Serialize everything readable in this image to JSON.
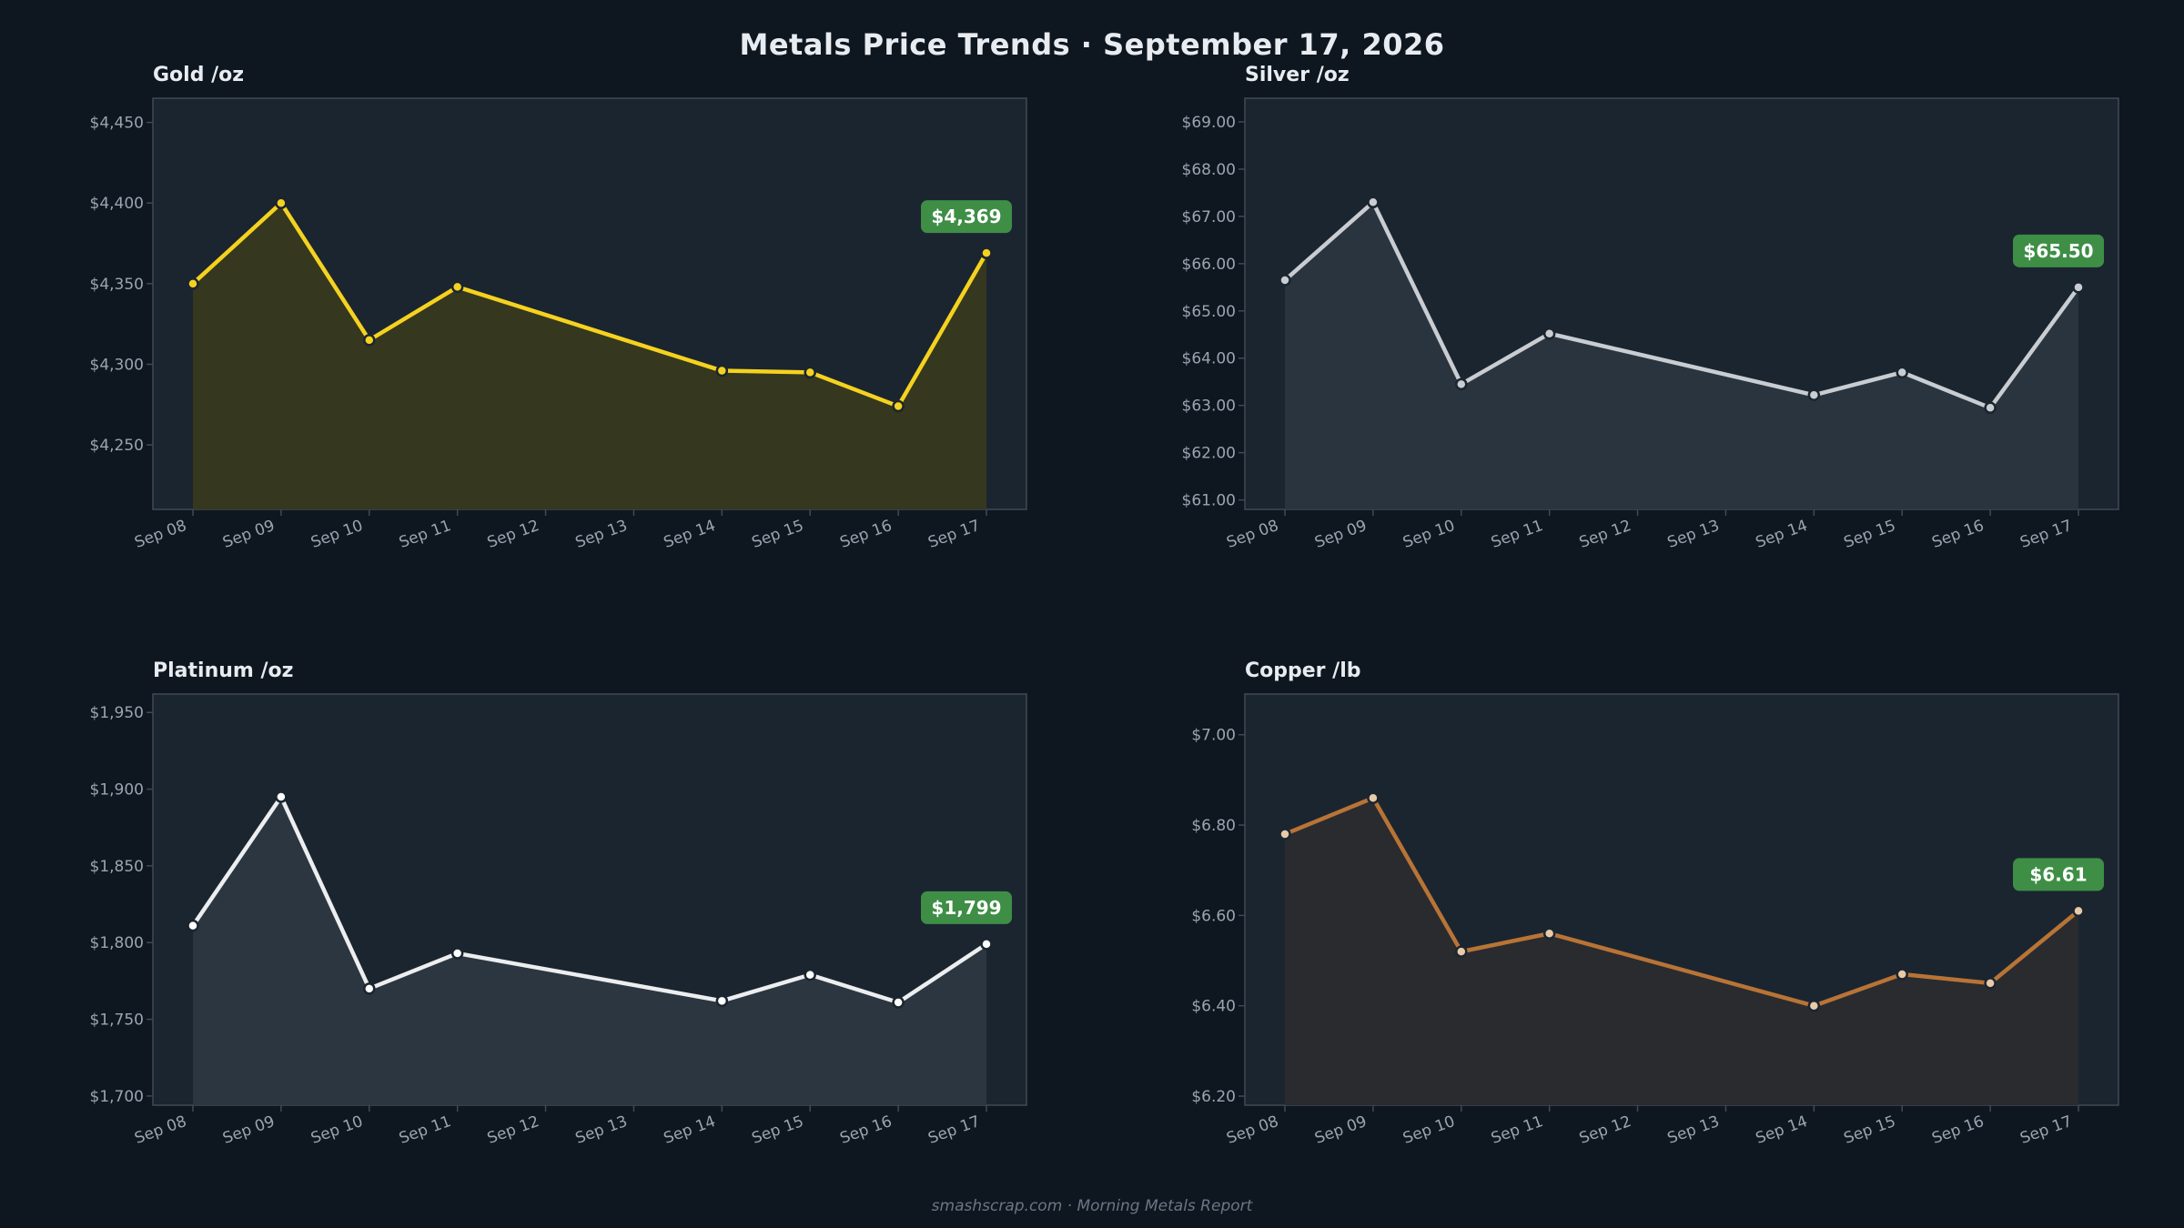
{
  "page": {
    "title": "Metals Price Trends  ·  September 17, 2026",
    "footer": "smashscrap.com  ·  Morning Metals Report"
  },
  "chart_data": [
    {
      "type": "line",
      "title": "Gold  /oz",
      "xlabel": "",
      "ylabel": "",
      "categories": [
        "Sep 08",
        "Sep 09",
        "Sep 10",
        "Sep 11",
        "Sep 12",
        "Sep 13",
        "Sep 14",
        "Sep 15",
        "Sep 16",
        "Sep 17"
      ],
      "series": [
        {
          "values": [
            4350,
            4400,
            4315,
            4348,
            null,
            null,
            4296,
            4295,
            4274,
            4369
          ]
        }
      ],
      "ylim": [
        4210,
        4465
      ],
      "yticks": [
        4250,
        4300,
        4350,
        4400,
        4450
      ],
      "yticklabels": [
        "$4,250",
        "$4,300",
        "$4,350",
        "$4,400",
        "$4,450"
      ],
      "last_label": "$4,369",
      "color": "#f5d21f",
      "fill": "#37381f",
      "marker_fill": "#f5d21f",
      "grid": false
    },
    {
      "type": "line",
      "title": "Silver  /oz",
      "xlabel": "",
      "ylabel": "",
      "categories": [
        "Sep 08",
        "Sep 09",
        "Sep 10",
        "Sep 11",
        "Sep 12",
        "Sep 13",
        "Sep 14",
        "Sep 15",
        "Sep 16",
        "Sep 17"
      ],
      "series": [
        {
          "values": [
            65.65,
            67.3,
            63.45,
            64.52,
            null,
            null,
            63.22,
            63.7,
            62.95,
            65.5
          ]
        }
      ],
      "ylim": [
        60.8,
        69.5
      ],
      "yticks": [
        61,
        62,
        63,
        64,
        65,
        66,
        67,
        68,
        69
      ],
      "yticklabels": [
        "$61.00",
        "$62.00",
        "$63.00",
        "$64.00",
        "$65.00",
        "$66.00",
        "$67.00",
        "$68.00",
        "$69.00"
      ],
      "last_label": "$65.50",
      "color": "#c9cdd2",
      "fill": "#2b3540",
      "marker_fill": "#c9cdd2",
      "grid": false
    },
    {
      "type": "line",
      "title": "Platinum  /oz",
      "xlabel": "",
      "ylabel": "",
      "categories": [
        "Sep 08",
        "Sep 09",
        "Sep 10",
        "Sep 11",
        "Sep 12",
        "Sep 13",
        "Sep 14",
        "Sep 15",
        "Sep 16",
        "Sep 17"
      ],
      "series": [
        {
          "values": [
            1811,
            1895,
            1770,
            1793,
            null,
            null,
            1762,
            1779,
            1761,
            1799
          ]
        }
      ],
      "ylim": [
        1694,
        1962
      ],
      "yticks": [
        1700,
        1750,
        1800,
        1850,
        1900,
        1950
      ],
      "yticklabels": [
        "$1,700",
        "$1,750",
        "$1,800",
        "$1,850",
        "$1,900",
        "$1,950"
      ],
      "last_label": "$1,799",
      "color": "#eceeef",
      "fill": "#2d3741",
      "marker_fill": "#ffffff",
      "grid": false
    },
    {
      "type": "line",
      "title": "Copper  /lb",
      "xlabel": "",
      "ylabel": "",
      "categories": [
        "Sep 08",
        "Sep 09",
        "Sep 10",
        "Sep 11",
        "Sep 12",
        "Sep 13",
        "Sep 14",
        "Sep 15",
        "Sep 16",
        "Sep 17"
      ],
      "series": [
        {
          "values": [
            6.78,
            6.86,
            6.52,
            6.56,
            null,
            null,
            6.4,
            6.47,
            6.45,
            6.61
          ]
        }
      ],
      "ylim": [
        6.18,
        7.09
      ],
      "yticks": [
        6.2,
        6.4,
        6.6,
        6.8,
        7.0
      ],
      "yticklabels": [
        "$6.20",
        "$6.40",
        "$6.60",
        "$6.80",
        "$7.00"
      ],
      "last_label": "$6.61",
      "color": "#b87436",
      "fill": "#2b2b2e",
      "marker_fill": "#e8c9a8",
      "grid": false
    }
  ],
  "colors": {
    "background": "#0e1620",
    "panel": "#1b2530",
    "panel_border": "#3e4a55",
    "tick_text": "#9aa5b0",
    "title_text": "#e8ecf0",
    "badge": "#3e8e46"
  }
}
